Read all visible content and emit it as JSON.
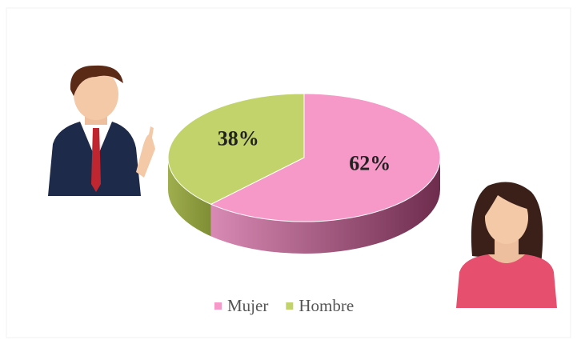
{
  "chart_data": {
    "type": "pie3d",
    "categories": [
      "Mujer",
      "Hombre"
    ],
    "values": [
      62,
      38
    ],
    "value_labels": [
      "62%",
      "38%"
    ],
    "colors": [
      "#f799c8",
      "#c3d36b"
    ],
    "side_colors": [
      "#8f3e66",
      "#8e9d3f"
    ],
    "legend": "bottom"
  }
}
